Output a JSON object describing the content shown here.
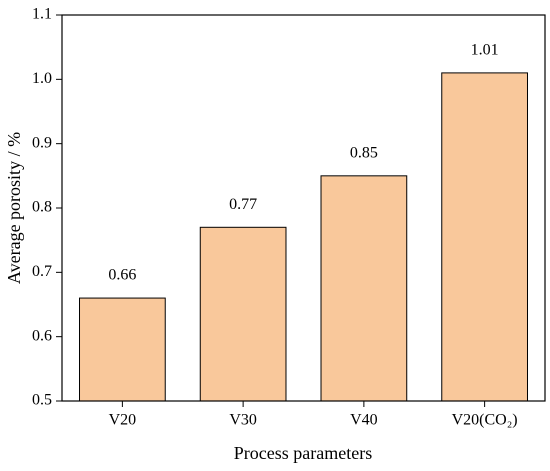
{
  "chart_data": {
    "type": "bar",
    "x_label": "Process parameters",
    "y_label": "Average porosity / %",
    "categories": [
      "V20",
      "V30",
      "V40",
      "V20(CO₂)"
    ],
    "values": [
      0.66,
      0.77,
      0.85,
      1.01
    ],
    "color": "#f9c89b",
    "ylim": [
      0.5,
      1.1
    ],
    "yticks": [
      0.5,
      0.6,
      0.7,
      0.8,
      0.9,
      {
        "value": 1,
        "label": "1.0"
      },
      1.1
    ]
  }
}
